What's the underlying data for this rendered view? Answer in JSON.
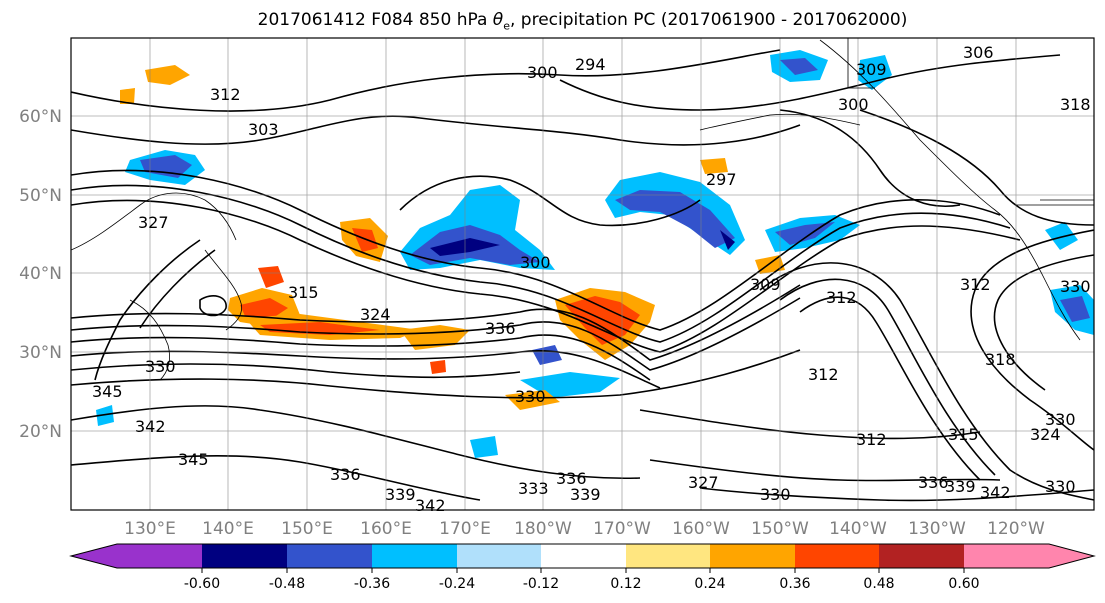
{
  "title_main": "2017061412 F084 850 hPa ",
  "title_theta": "θ",
  "title_sub": "e",
  "title_rest": ", precipitation PC (2017061900 - 2017062000)",
  "lat_labels": [
    "60°N",
    "50°N",
    "40°N",
    "30°N",
    "20°N"
  ],
  "lon_labels": [
    "130°E",
    "140°E",
    "150°E",
    "160°E",
    "170°E",
    "180°W",
    "170°W",
    "160°W",
    "150°W",
    "140°W",
    "130°W",
    "120°W"
  ],
  "colorbar": {
    "colors": [
      "#9932cc",
      "#000080",
      "#3353cc",
      "#00bfff",
      "#b0e0fb",
      "#ffffff",
      "#ffe680",
      "#ffa500",
      "#ff4500",
      "#b22222",
      "#ff85ad"
    ],
    "tick_labels": [
      "-0.60",
      "-0.48",
      "-0.36",
      "-0.24",
      "-0.12",
      "0.12",
      "0.24",
      "0.36",
      "0.48",
      "0.60"
    ]
  },
  "contour_labels": [
    "306",
    "309",
    "300",
    "294",
    "312",
    "303",
    "297",
    "300",
    "327",
    "315",
    "324",
    "336",
    "309",
    "312",
    "300",
    "330",
    "345",
    "342",
    "345",
    "336",
    "333",
    "336",
    "339",
    "339",
    "342",
    "327",
    "330",
    "312",
    "312",
    "315",
    "318",
    "324",
    "330",
    "336",
    "339",
    "342",
    "330",
    "312",
    "330",
    "318",
    "330"
  ]
}
